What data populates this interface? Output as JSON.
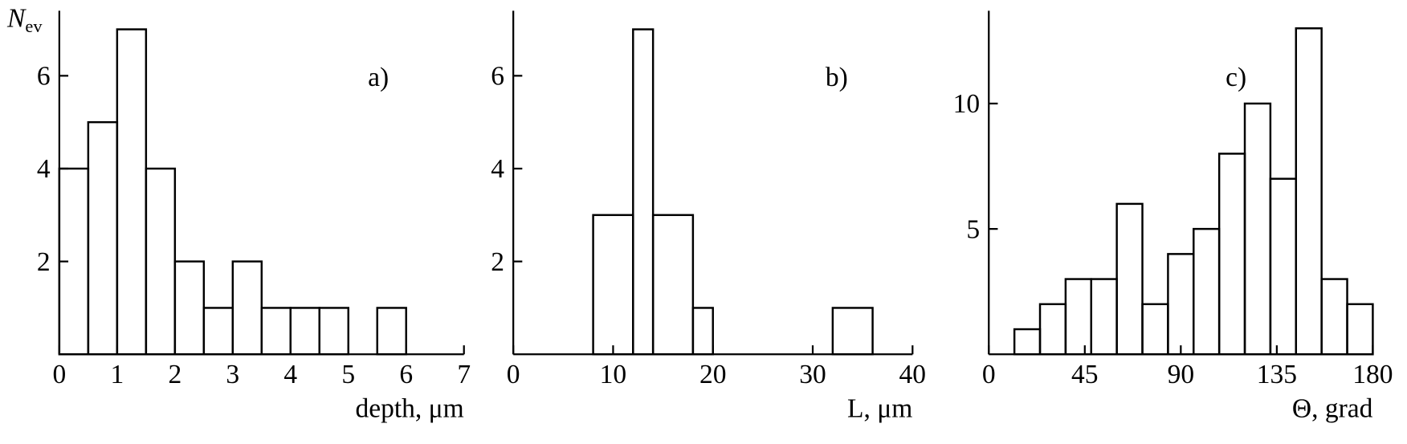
{
  "chart_data": [
    {
      "type": "histogram",
      "panel_label": "a)",
      "ylabel": {
        "main": "N",
        "sub": "ev"
      },
      "xlabel": "depth, μm",
      "bins": [
        0,
        0.5,
        1,
        1.5,
        2,
        2.5,
        3,
        3.5,
        4,
        4.5,
        5,
        5.5,
        6
      ],
      "values": [
        4,
        5,
        7,
        4,
        2,
        1,
        2,
        1,
        1,
        1,
        0,
        1
      ],
      "xlim": [
        0,
        7
      ],
      "ylim": [
        0,
        7.4
      ],
      "xticks": [
        0,
        1,
        2,
        3,
        4,
        5,
        6,
        7
      ],
      "yticks": [
        2,
        4,
        6
      ],
      "color": "#000000"
    },
    {
      "type": "histogram",
      "panel_label": "b)",
      "xlabel": "L, μm",
      "bins": [
        8,
        12,
        14,
        18,
        20,
        32,
        36
      ],
      "values": [
        3,
        7,
        3,
        1,
        0,
        1
      ],
      "xlim": [
        0,
        40
      ],
      "ylim": [
        0,
        7.4
      ],
      "xticks": [
        0,
        10,
        20,
        30,
        40
      ],
      "yticks": [
        2,
        4,
        6
      ],
      "color": "#000000"
    },
    {
      "type": "histogram",
      "panel_label": "c)",
      "xlabel": "Θ, grad",
      "bins": [
        12,
        24,
        36,
        48,
        60,
        72,
        84,
        96,
        108,
        120,
        132,
        144,
        156,
        168,
        180
      ],
      "values": [
        1,
        2,
        3,
        3,
        6,
        2,
        4,
        5,
        8,
        10,
        7,
        13,
        3,
        2
      ],
      "xlim": [
        0,
        180
      ],
      "ylim": [
        0,
        13.7
      ],
      "xticks": [
        0,
        45,
        90,
        135,
        180
      ],
      "yticks": [
        5,
        10
      ],
      "color": "#000000"
    }
  ]
}
